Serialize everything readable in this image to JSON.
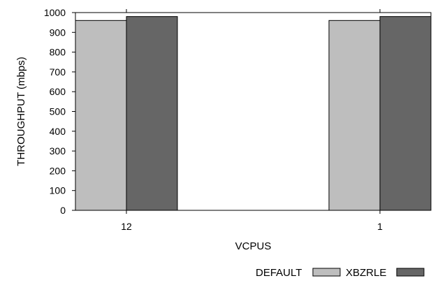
{
  "chart_data": {
    "type": "bar",
    "title": "",
    "xlabel": "VCPUS",
    "ylabel": "THROUGHPUT (mbps)",
    "categories": [
      "12",
      "1"
    ],
    "ylim": [
      0,
      1000
    ],
    "yticks": [
      0,
      100,
      200,
      300,
      400,
      500,
      600,
      700,
      800,
      900,
      1000
    ],
    "series": [
      {
        "name": "DEFAULT",
        "values": [
          960,
          960
        ],
        "color": "#bebebe"
      },
      {
        "name": "XBZRLE",
        "values": [
          980,
          980
        ],
        "color": "#666666"
      }
    ],
    "legend_position": "bottom-right",
    "grid": false
  }
}
